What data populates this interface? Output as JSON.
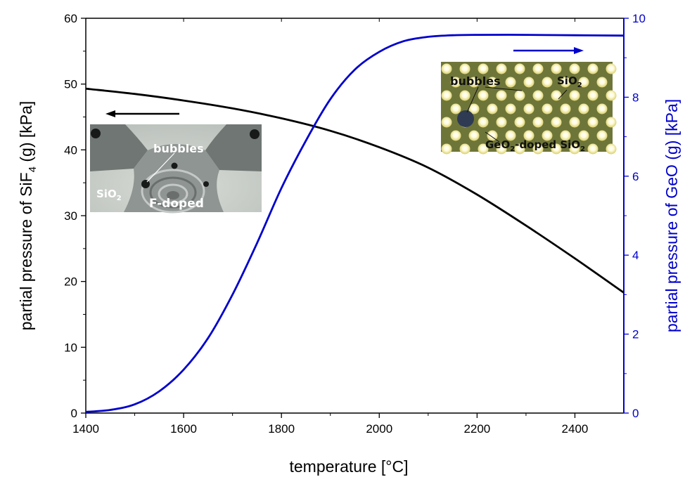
{
  "chart_data": {
    "type": "line",
    "xlabel": "temperature [°C]",
    "ylabel_left": {
      "main": "partial pressure of SiF",
      "sub": "4",
      "tail": " (g) [kPa]"
    },
    "ylabel_right": "partial pressure of GeO (g) [kPa]",
    "xlim": [
      1400,
      2500
    ],
    "ylim_left": [
      0,
      60
    ],
    "ylim_right": [
      0,
      10
    ],
    "x_ticks": [
      "1400",
      "1600",
      "1800",
      "2000",
      "2200",
      "2400"
    ],
    "y_left_ticks": [
      "0",
      "10",
      "20",
      "30",
      "40",
      "50",
      "60"
    ],
    "y_right_ticks": [
      "0",
      "2",
      "4",
      "6",
      "8",
      "10"
    ],
    "grid": false,
    "series": [
      {
        "axis": "left",
        "color": "#000000",
        "x": [
          1400,
          1500,
          1600,
          1700,
          1800,
          1900,
          2000,
          2100,
          2200,
          2300,
          2400,
          2500
        ],
        "y": [
          49.3,
          48.5,
          47.5,
          46.3,
          44.8,
          42.9,
          40.4,
          37.3,
          33.2,
          28.5,
          23.5,
          18.3
        ]
      },
      {
        "axis": "right",
        "color": "#0000cc",
        "x": [
          1400,
          1450,
          1500,
          1550,
          1600,
          1650,
          1700,
          1750,
          1800,
          1850,
          1900,
          1950,
          2000,
          2050,
          2100,
          2150,
          2200,
          2300,
          2400,
          2500
        ],
        "y": [
          0.03,
          0.08,
          0.22,
          0.55,
          1.1,
          1.9,
          3.0,
          4.3,
          5.7,
          6.9,
          7.95,
          8.7,
          9.15,
          9.42,
          9.53,
          9.57,
          9.58,
          9.58,
          9.57,
          9.56
        ]
      }
    ],
    "arrows": [
      {
        "direction": "left",
        "axis": "left",
        "color": "#000000"
      },
      {
        "direction": "right",
        "axis": "right",
        "color": "#0000cc"
      }
    ],
    "insets": [
      {
        "id": "left",
        "labels": [
          {
            "text": "bubbles",
            "sub": ""
          },
          {
            "text": "SiO",
            "sub": "2"
          },
          {
            "text": "F-doped",
            "sub": ""
          }
        ]
      },
      {
        "id": "right",
        "labels": [
          {
            "text": "bubbles",
            "sub": ""
          },
          {
            "text": "SiO",
            "sub": "2"
          },
          {
            "text": "GeO",
            "sub": "2",
            "tail": "-doped SiO",
            "sub2": "2"
          }
        ]
      }
    ]
  }
}
